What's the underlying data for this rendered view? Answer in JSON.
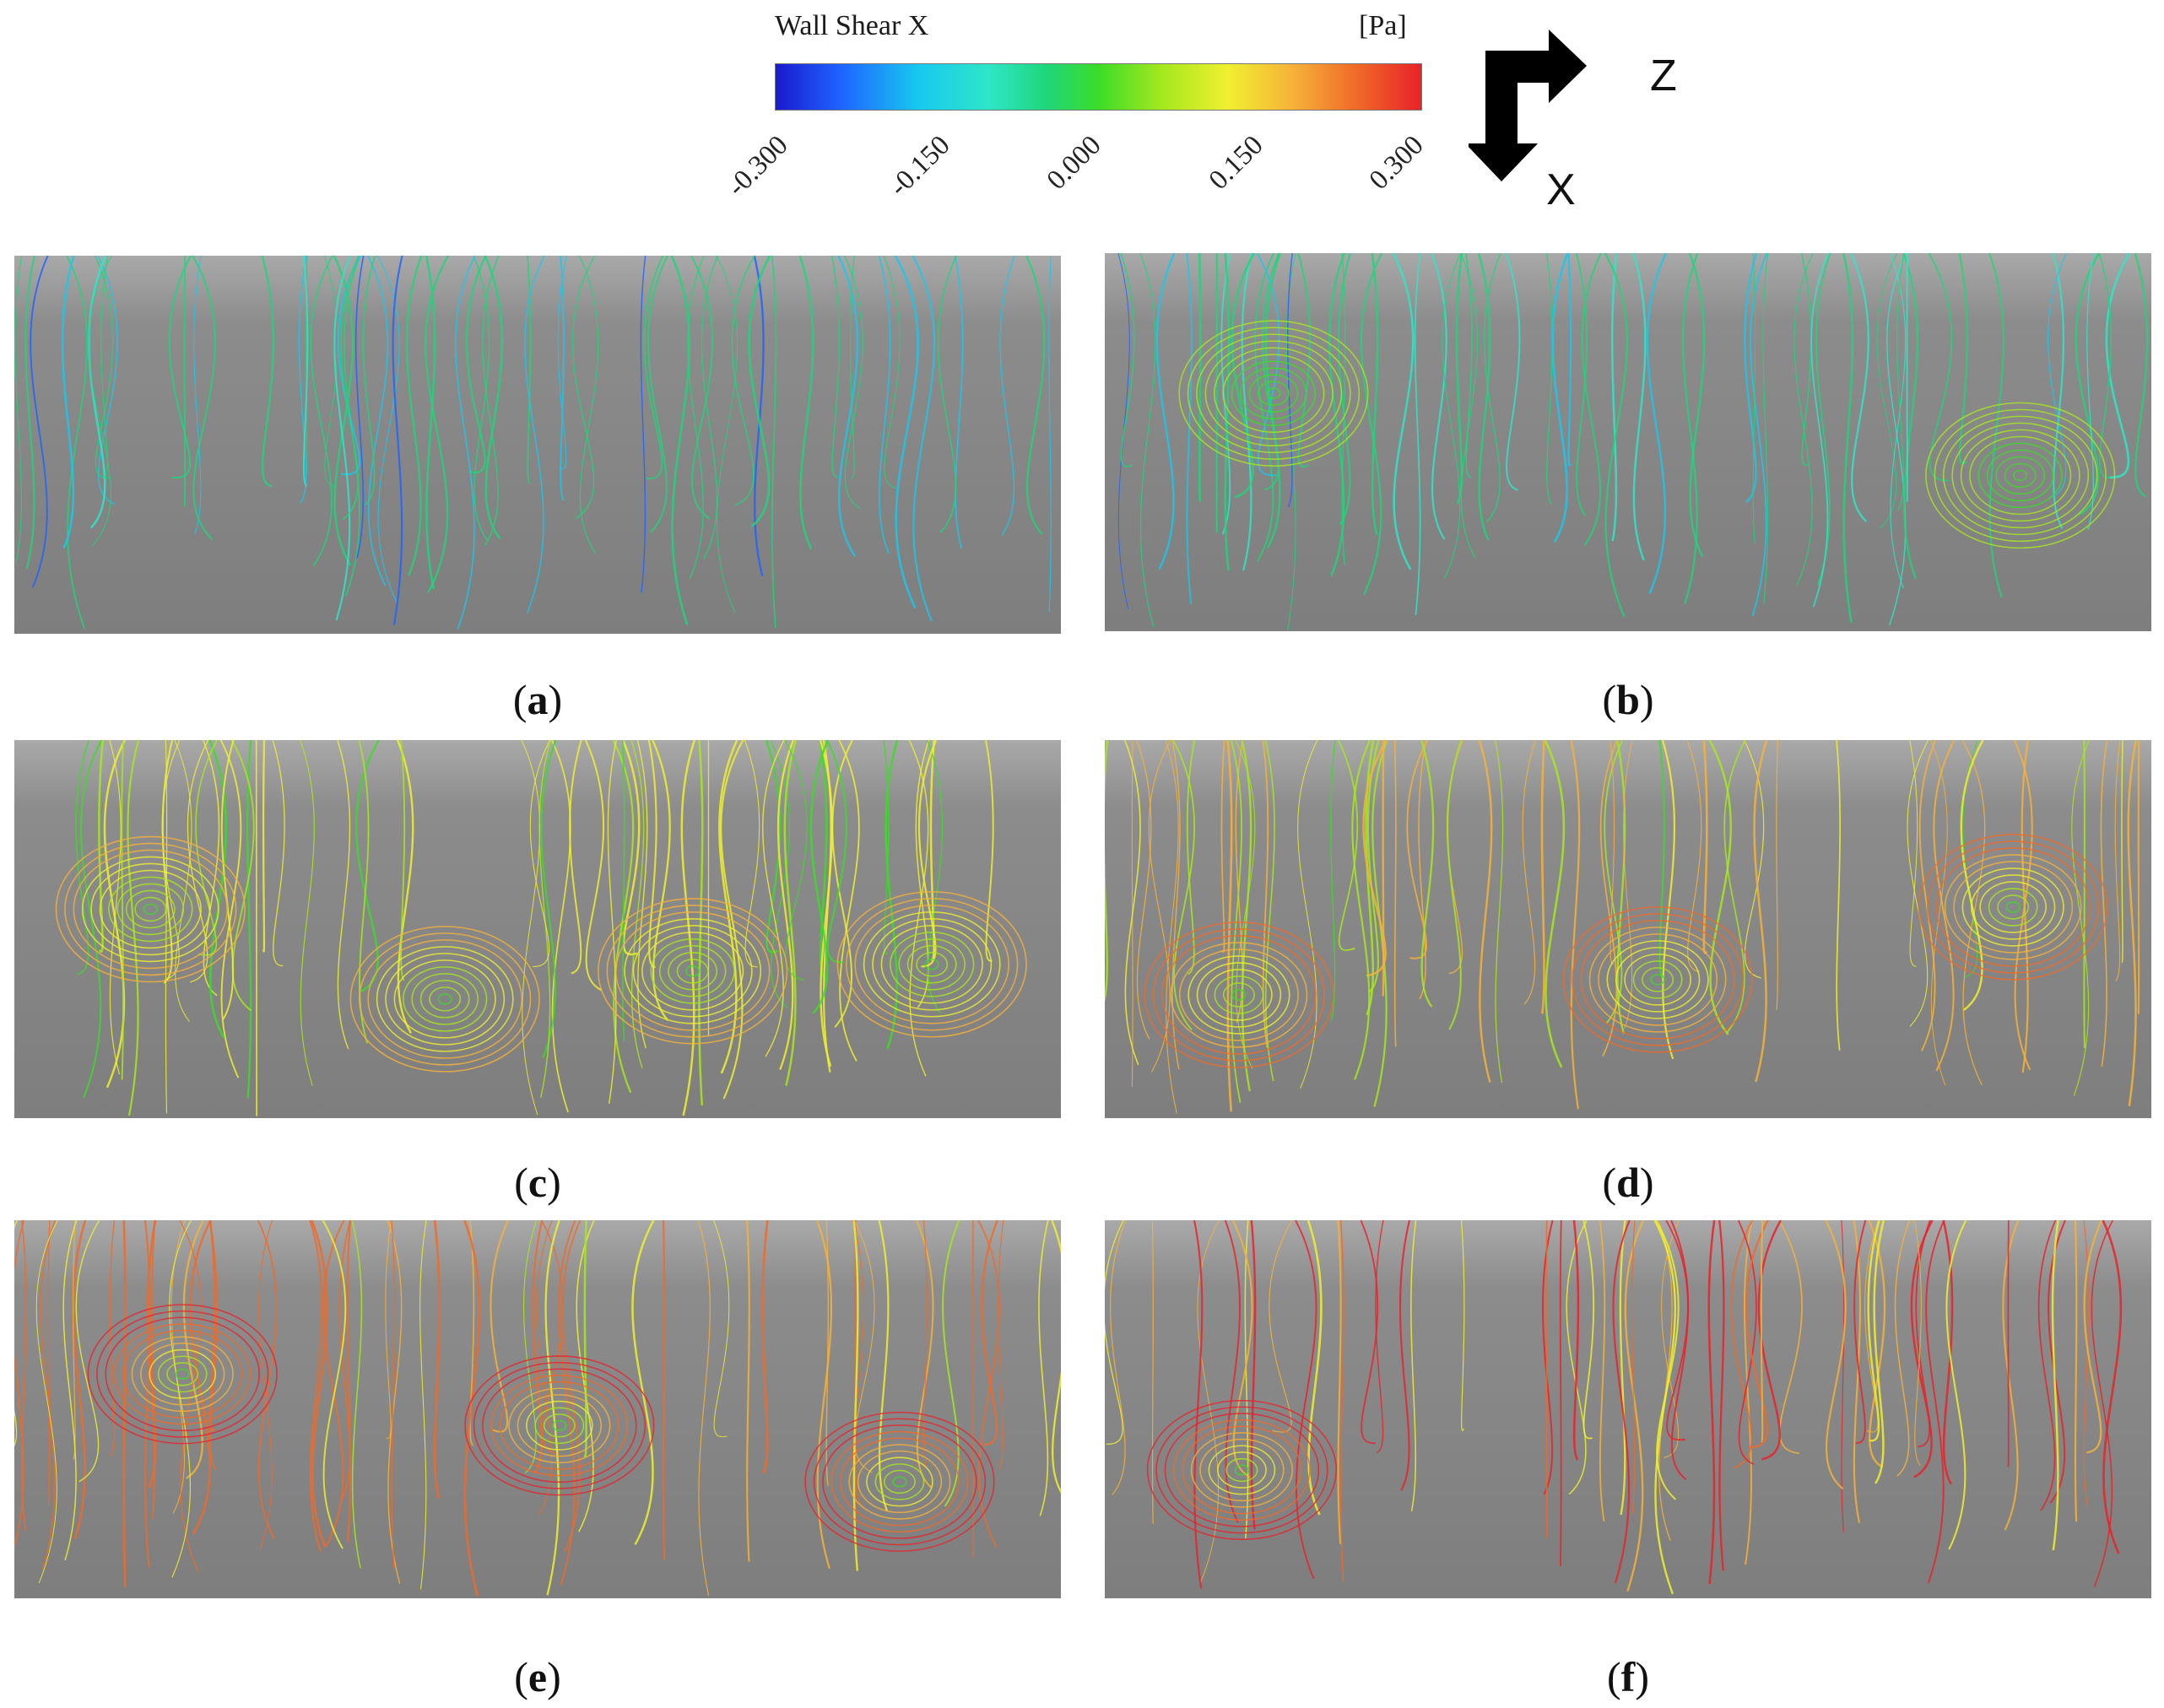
{
  "legend": {
    "title": "Wall Shear X",
    "unit": "[Pa]",
    "ticks": [
      "-0.300",
      "-0.150",
      "0.000",
      "0.150",
      "0.300"
    ]
  },
  "axes": {
    "horizontal": "Z",
    "vertical": "X"
  },
  "panels": [
    {
      "label": "a"
    },
    {
      "label": "b"
    },
    {
      "label": "c"
    },
    {
      "label": "d"
    },
    {
      "label": "e"
    },
    {
      "label": "f"
    }
  ]
}
